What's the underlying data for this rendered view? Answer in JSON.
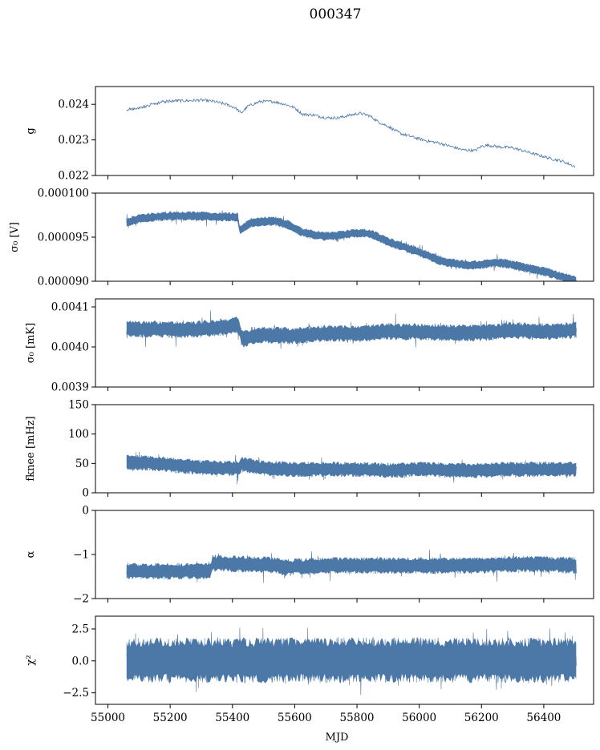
{
  "chart_data": {
    "type": "line",
    "title": "000347",
    "xlabel": "MJD",
    "xlim": [
      54960,
      56560
    ],
    "xticks": [
      55000,
      55200,
      55400,
      55600,
      55800,
      56000,
      56200,
      56400
    ],
    "xtick_labels": [
      "55000",
      "55200",
      "55400",
      "55600",
      "55800",
      "56000",
      "56200",
      "56400"
    ],
    "series_color": "#4c78a8",
    "panels": [
      {
        "name": "gain",
        "ylabel": "g",
        "ylim": [
          0.022,
          0.0245
        ],
        "yticks": [
          0.022,
          0.023,
          0.024
        ],
        "ytick_labels": [
          "0.022",
          "0.023",
          "0.024"
        ],
        "style": "line",
        "points": [
          [
            55060,
            0.02385
          ],
          [
            55100,
            0.0239
          ],
          [
            55140,
            0.024
          ],
          [
            55180,
            0.02408
          ],
          [
            55220,
            0.0241
          ],
          [
            55260,
            0.0241
          ],
          [
            55300,
            0.02412
          ],
          [
            55340,
            0.02408
          ],
          [
            55380,
            0.024
          ],
          [
            55410,
            0.0239
          ],
          [
            55428,
            0.02375
          ],
          [
            55450,
            0.02395
          ],
          [
            55490,
            0.02408
          ],
          [
            55530,
            0.02408
          ],
          [
            55570,
            0.024
          ],
          [
            55600,
            0.0239
          ],
          [
            55625,
            0.02372
          ],
          [
            55660,
            0.0237
          ],
          [
            55700,
            0.02362
          ],
          [
            55740,
            0.02362
          ],
          [
            55780,
            0.0237
          ],
          [
            55810,
            0.02375
          ],
          [
            55840,
            0.02368
          ],
          [
            55870,
            0.0235
          ],
          [
            55900,
            0.02338
          ],
          [
            55940,
            0.02318
          ],
          [
            55980,
            0.02308
          ],
          [
            56020,
            0.02298
          ],
          [
            56060,
            0.02292
          ],
          [
            56100,
            0.02282
          ],
          [
            56140,
            0.02272
          ],
          [
            56180,
            0.0227
          ],
          [
            56200,
            0.02282
          ],
          [
            56220,
            0.02285
          ],
          [
            56260,
            0.0228
          ],
          [
            56300,
            0.02278
          ],
          [
            56340,
            0.02268
          ],
          [
            56380,
            0.02258
          ],
          [
            56420,
            0.02248
          ],
          [
            56460,
            0.0224
          ],
          [
            56500,
            0.02225
          ]
        ]
      },
      {
        "name": "sigma0-volts",
        "ylabel": "σ₀ [V]",
        "ylim": [
          9e-05,
          0.0001
        ],
        "yticks": [
          9e-05,
          9.5e-05,
          0.0001
        ],
        "ytick_labels": [
          "0.000090",
          "0.000095",
          "0.000100"
        ],
        "style": "band",
        "center": [
          [
            55060,
            9.67e-05
          ],
          [
            55100,
            9.71e-05
          ],
          [
            55150,
            9.73e-05
          ],
          [
            55200,
            9.74e-05
          ],
          [
            55250,
            9.74e-05
          ],
          [
            55300,
            9.74e-05
          ],
          [
            55350,
            9.73e-05
          ],
          [
            55400,
            9.73e-05
          ],
          [
            55419,
            9.73e-05
          ],
          [
            55421,
            9.58e-05
          ],
          [
            55460,
            9.66e-05
          ],
          [
            55500,
            9.68e-05
          ],
          [
            55540,
            9.68e-05
          ],
          [
            55580,
            9.64e-05
          ],
          [
            55620,
            9.56e-05
          ],
          [
            55660,
            9.53e-05
          ],
          [
            55700,
            9.51e-05
          ],
          [
            55740,
            9.52e-05
          ],
          [
            55780,
            9.54e-05
          ],
          [
            55820,
            9.55e-05
          ],
          [
            55850,
            9.53e-05
          ],
          [
            55880,
            9.48e-05
          ],
          [
            55920,
            9.42e-05
          ],
          [
            55960,
            9.38e-05
          ],
          [
            56000,
            9.33e-05
          ],
          [
            56040,
            9.27e-05
          ],
          [
            56080,
            9.22e-05
          ],
          [
            56120,
            9.2e-05
          ],
          [
            56160,
            9.18e-05
          ],
          [
            56200,
            9.19e-05
          ],
          [
            56240,
            9.21e-05
          ],
          [
            56280,
            9.2e-05
          ],
          [
            56320,
            9.17e-05
          ],
          [
            56360,
            9.14e-05
          ],
          [
            56400,
            9.11e-05
          ],
          [
            56440,
            9.07e-05
          ],
          [
            56480,
            9.03e-05
          ],
          [
            56505,
            9.01e-05
          ]
        ],
        "halfwidth": 4.5e-07
      },
      {
        "name": "sigma0-mk",
        "ylabel": "σ₀ [mK]",
        "ylim": [
          0.0039,
          0.00412
        ],
        "yticks": [
          0.0039,
          0.004,
          0.0041
        ],
        "ytick_labels": [
          "0.0039",
          "0.0040",
          "0.0041"
        ],
        "style": "band",
        "center": [
          [
            55060,
            0.004045
          ],
          [
            55150,
            0.004045
          ],
          [
            55250,
            0.004042
          ],
          [
            55350,
            0.004048
          ],
          [
            55419,
            0.004055
          ],
          [
            55430,
            0.00402
          ],
          [
            55500,
            0.00403
          ],
          [
            55600,
            0.004028
          ],
          [
            55700,
            0.004035
          ],
          [
            55800,
            0.004032
          ],
          [
            55900,
            0.004038
          ],
          [
            56000,
            0.004038
          ],
          [
            56100,
            0.004035
          ],
          [
            56200,
            0.004035
          ],
          [
            56300,
            0.004042
          ],
          [
            56400,
            0.004038
          ],
          [
            56505,
            0.004042
          ]
        ],
        "halfwidth": 1.8e-05
      },
      {
        "name": "f-knee",
        "ylabel": "fknee [mHz]",
        "ylim": [
          0,
          150
        ],
        "yticks": [
          0,
          50,
          100,
          150
        ],
        "ytick_labels": [
          "0",
          "50",
          "100",
          "150"
        ],
        "style": "band",
        "center": [
          [
            55060,
            52
          ],
          [
            55150,
            50
          ],
          [
            55250,
            45
          ],
          [
            55330,
            42
          ],
          [
            55419,
            42
          ],
          [
            55430,
            48
          ],
          [
            55500,
            42
          ],
          [
            55600,
            40
          ],
          [
            55700,
            40
          ],
          [
            55800,
            40
          ],
          [
            55900,
            38
          ],
          [
            56000,
            40
          ],
          [
            56100,
            38
          ],
          [
            56200,
            38
          ],
          [
            56300,
            40
          ],
          [
            56400,
            40
          ],
          [
            56505,
            40
          ]
        ],
        "halfwidth": 11
      },
      {
        "name": "alpha",
        "ylabel": "α",
        "ylim": [
          -2,
          0
        ],
        "yticks": [
          -2,
          -1,
          0
        ],
        "ytick_labels": [
          "−2",
          "−1",
          "0"
        ],
        "style": "band",
        "center": [
          [
            55060,
            -1.38
          ],
          [
            55200,
            -1.38
          ],
          [
            55330,
            -1.38
          ],
          [
            55335,
            -1.2
          ],
          [
            55450,
            -1.22
          ],
          [
            55550,
            -1.25
          ],
          [
            55560,
            -1.3
          ],
          [
            55600,
            -1.28
          ],
          [
            55700,
            -1.25
          ],
          [
            55800,
            -1.25
          ],
          [
            55900,
            -1.25
          ],
          [
            56000,
            -1.25
          ],
          [
            56100,
            -1.25
          ],
          [
            56200,
            -1.25
          ],
          [
            56300,
            -1.22
          ],
          [
            56400,
            -1.22
          ],
          [
            56505,
            -1.25
          ]
        ],
        "halfwidth": 0.16
      },
      {
        "name": "chi-squared",
        "ylabel": "χ²",
        "ylim": [
          -3.4,
          3.5
        ],
        "yticks": [
          -2.5,
          0,
          2.5
        ],
        "ytick_labels": [
          "−2.5",
          "0.0",
          "2.5"
        ],
        "style": "band",
        "center": [
          [
            55060,
            0.05
          ],
          [
            56505,
            0.05
          ]
        ],
        "halfwidth": 1.5
      }
    ]
  }
}
